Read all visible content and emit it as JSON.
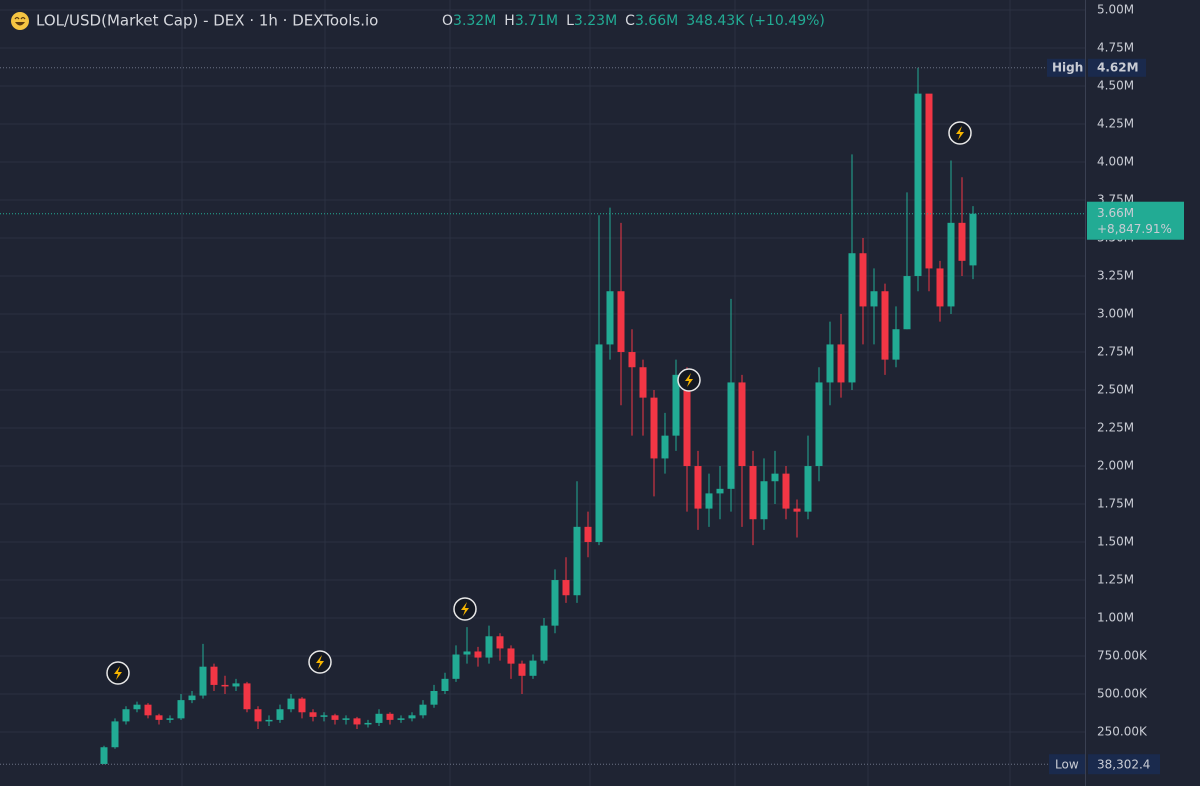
{
  "chart_data": {
    "type": "candlestick",
    "title": "LOL/USD(Market Cap) - DEX · 1h · DEXTools.io",
    "legend": [
      {
        "key": "O",
        "label": "3.32M"
      },
      {
        "key": "H",
        "label": "3.71M"
      },
      {
        "key": "L",
        "label": "3.23M"
      },
      {
        "key": "C",
        "label": "3.66M"
      }
    ],
    "change": "348.43K (+10.49%)",
    "up_color": "#22ab94",
    "down_color": "#f23645",
    "ylim": [
      -105000,
      5066000
    ],
    "yticks": [
      {
        "value": 5000000,
        "label": "5.00M"
      },
      {
        "value": 4750000,
        "label": "4.75M"
      },
      {
        "value": 4500000,
        "label": "4.50M"
      },
      {
        "value": 4250000,
        "label": "4.25M"
      },
      {
        "value": 4000000,
        "label": "4.00M"
      },
      {
        "value": 3750000,
        "label": "3.75M"
      },
      {
        "value": 3500000,
        "label": "3.50M"
      },
      {
        "value": 3250000,
        "label": "3.25M"
      },
      {
        "value": 3000000,
        "label": "3.00M"
      },
      {
        "value": 2750000,
        "label": "2.75M"
      },
      {
        "value": 2500000,
        "label": "2.50M"
      },
      {
        "value": 2250000,
        "label": "2.25M"
      },
      {
        "value": 2000000,
        "label": "2.00M"
      },
      {
        "value": 1750000,
        "label": "1.75M"
      },
      {
        "value": 1500000,
        "label": "1.50M"
      },
      {
        "value": 1250000,
        "label": "1.25M"
      },
      {
        "value": 1000000,
        "label": "1.00M"
      },
      {
        "value": 750000,
        "label": "750.00K"
      },
      {
        "value": 500000,
        "label": "500.00K"
      },
      {
        "value": 250000,
        "label": "250.00K"
      }
    ],
    "grid": true,
    "high_marker": {
      "name": "High",
      "value": 4620000,
      "label": "4.62M"
    },
    "low_marker": {
      "name": "Low",
      "value": 38302.4,
      "label": "38,302.4"
    },
    "last_price": {
      "value": 3660000,
      "label": "3.66M",
      "change": "+8,847.91%"
    },
    "open": [
      40000,
      150000,
      320000,
      400000,
      430000,
      360000,
      330000,
      340000,
      460000,
      490000,
      680000,
      560000,
      550000,
      570000,
      400000,
      320000,
      330000,
      400000,
      470000,
      380000,
      350000,
      360000,
      330000,
      340000,
      300000,
      310000,
      370000,
      330000,
      340000,
      360000,
      430000,
      520000,
      600000,
      760000,
      780000,
      740000,
      880000,
      800000,
      700000,
      620000,
      720000,
      950000,
      1250000,
      1150000,
      1600000,
      1500000,
      2800000,
      3150000,
      2750000,
      2650000,
      2450000,
      2050000,
      2200000,
      2600000,
      2000000,
      1720000,
      1820000,
      1850000,
      2550000,
      2000000,
      1650000,
      1900000,
      1950000,
      1720000,
      1700000,
      2000000,
      2550000,
      2800000,
      2550000,
      3400000,
      3050000,
      3150000,
      2700000,
      2900000,
      3250000,
      4450000,
      3300000,
      3050000,
      3600000,
      3320000
    ],
    "high": [
      160000,
      340000,
      420000,
      450000,
      440000,
      370000,
      360000,
      500000,
      520000,
      830000,
      700000,
      620000,
      600000,
      580000,
      420000,
      360000,
      430000,
      500000,
      480000,
      400000,
      380000,
      370000,
      360000,
      350000,
      330000,
      400000,
      380000,
      360000,
      380000,
      460000,
      560000,
      640000,
      820000,
      940000,
      810000,
      950000,
      900000,
      820000,
      720000,
      760000,
      1000000,
      1320000,
      1400000,
      1900000,
      1700000,
      3650000,
      3700000,
      3600000,
      2900000,
      2700000,
      2500000,
      2350000,
      2700000,
      2650000,
      2100000,
      1950000,
      2000000,
      3100000,
      2600000,
      2100000,
      2050000,
      2100000,
      2000000,
      1780000,
      2200000,
      2650000,
      2950000,
      3000000,
      4050000,
      3500000,
      3300000,
      3200000,
      3050000,
      3800000,
      4620000,
      4400000,
      3350000,
      4010000,
      3900000,
      3710000
    ],
    "low": [
      38302.4,
      140000,
      300000,
      380000,
      340000,
      300000,
      310000,
      330000,
      440000,
      470000,
      520000,
      500000,
      520000,
      380000,
      270000,
      290000,
      310000,
      380000,
      340000,
      320000,
      320000,
      300000,
      300000,
      270000,
      280000,
      290000,
      300000,
      310000,
      320000,
      340000,
      410000,
      500000,
      580000,
      700000,
      680000,
      700000,
      720000,
      600000,
      500000,
      600000,
      700000,
      900000,
      1100000,
      1100000,
      1400000,
      1480000,
      2700000,
      2400000,
      2200000,
      2200000,
      1800000,
      1950000,
      2100000,
      1700000,
      1580000,
      1600000,
      1650000,
      1700000,
      1600000,
      1480000,
      1580000,
      1750000,
      1650000,
      1530000,
      1650000,
      1900000,
      2400000,
      2450000,
      2500000,
      2800000,
      2800000,
      2600000,
      2650000,
      2900000,
      3150000,
      3150000,
      2950000,
      3000000,
      3250000,
      3230000
    ],
    "close": [
      150000,
      320000,
      400000,
      430000,
      360000,
      330000,
      340000,
      460000,
      490000,
      680000,
      560000,
      550000,
      570000,
      400000,
      320000,
      330000,
      400000,
      470000,
      380000,
      350000,
      360000,
      330000,
      340000,
      300000,
      310000,
      370000,
      330000,
      340000,
      360000,
      430000,
      520000,
      600000,
      760000,
      780000,
      740000,
      880000,
      800000,
      700000,
      620000,
      720000,
      950000,
      1250000,
      1150000,
      1600000,
      1500000,
      2800000,
      3150000,
      2750000,
      2650000,
      2450000,
      2050000,
      2200000,
      2600000,
      2000000,
      1720000,
      1820000,
      1850000,
      2550000,
      2000000,
      1650000,
      1900000,
      1950000,
      1720000,
      1700000,
      2000000,
      2550000,
      2800000,
      2550000,
      3400000,
      3050000,
      3150000,
      2700000,
      2900000,
      3250000,
      4450000,
      3300000,
      3050000,
      3600000,
      3350000,
      3660000
    ]
  }
}
